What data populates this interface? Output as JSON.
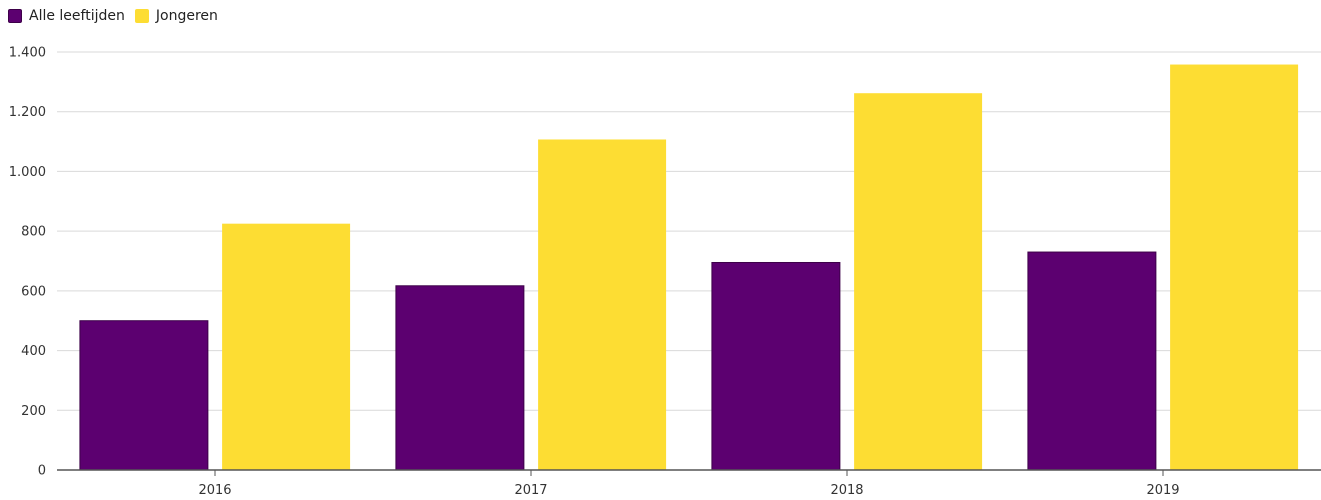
{
  "legend": {
    "items": [
      {
        "label": "Alle leeftijden",
        "color": "#5c0070"
      },
      {
        "label": "Jongeren",
        "color": "#fddd33"
      }
    ]
  },
  "chart_data": {
    "type": "bar",
    "categories": [
      "2016",
      "2017",
      "2018",
      "2019"
    ],
    "series": [
      {
        "name": "Alle leeftijden",
        "values": [
          500,
          617,
          695,
          730
        ],
        "color": "#5c0070"
      },
      {
        "name": "Jongeren",
        "values": [
          825,
          1107,
          1262,
          1358
        ],
        "color": "#fddd33"
      }
    ],
    "title": "",
    "xlabel": "",
    "ylabel": "",
    "ylim": [
      0,
      1400
    ],
    "yticks": [
      0,
      200,
      400,
      600,
      800,
      1000,
      1200,
      1400
    ],
    "ytick_labels": [
      "0",
      "200",
      "400",
      "600",
      "800",
      "1.000",
      "1.200",
      "1.400"
    ],
    "grid": true,
    "legend_position": "top-left"
  }
}
